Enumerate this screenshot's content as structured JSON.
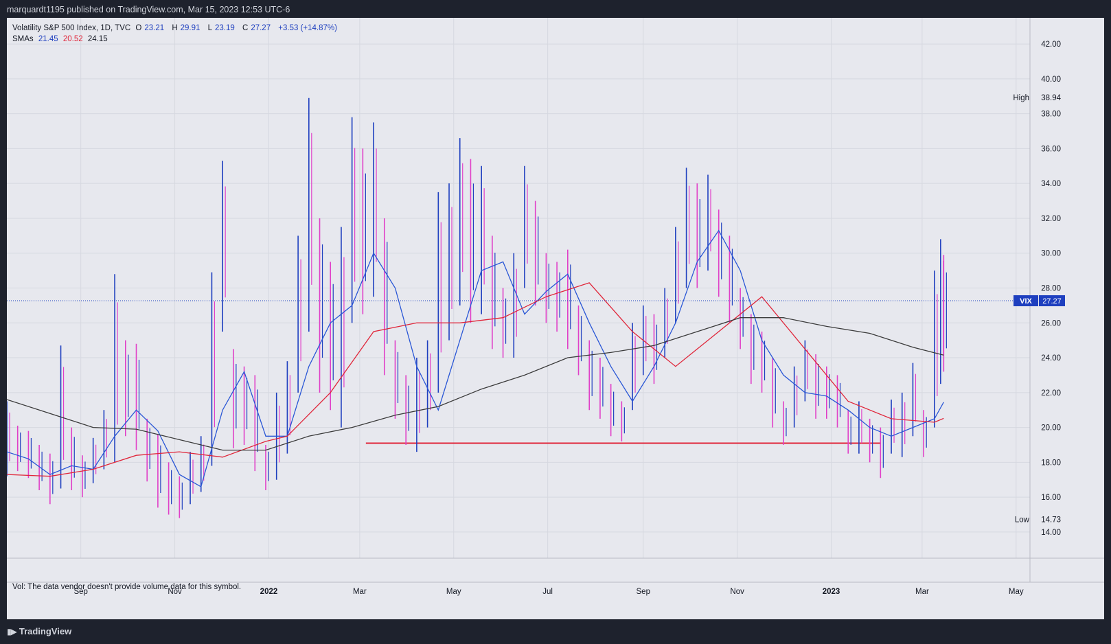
{
  "header": {
    "published": "marquardt1195 published on TradingView.com, Mar 15, 2023 12:53 UTC-6"
  },
  "legend": {
    "symbol_line": "Volatility S&P 500 Index, 1D, TVC",
    "o_label": "O",
    "o_value": "23.21",
    "h_label": "H",
    "h_value": "29.91",
    "l_label": "L",
    "l_value": "23.19",
    "c_label": "C",
    "c_value": "27.27",
    "change": "+3.53 (+14.87%)",
    "sma_label": "SMAs",
    "sma1": "21.45",
    "sma2": "20.52",
    "sma3": "24.15"
  },
  "volume_note": "Vol: The data vendor doesn't provide volume data for this symbol.",
  "footer": {
    "logo_text": "TradingView"
  },
  "colors": {
    "up": "#1e3fbf",
    "down": "#e040c8",
    "sma20": "#2a57d6",
    "sma50": "#e0263a",
    "sma200": "#3b3b3b",
    "support": "#e0263a",
    "price_line": "#1e3fbf",
    "panel": "#e7e8ee"
  },
  "chart_data": {
    "type": "bar",
    "title": "Volatility S&P 500 Index, 1D, TVC",
    "x_axis_labels": [
      "Sep",
      "Nov",
      "2022",
      "Mar",
      "May",
      "Jul",
      "Sep",
      "Nov",
      "2023",
      "Mar",
      "May"
    ],
    "x_axis_label_dates": [
      "2021-09-01",
      "2021-11-01",
      "2022-01-01",
      "2022-03-01",
      "2022-05-01",
      "2022-07-01",
      "2022-09-01",
      "2022-11-01",
      "2023-01-01",
      "2023-03-01",
      "2023-05-01"
    ],
    "bold_labels": [
      "2022",
      "2023"
    ],
    "y_ticks": [
      "14.00",
      "16.00",
      "18.00",
      "20.00",
      "22.00",
      "24.00",
      "26.00",
      "28.00",
      "30.00",
      "32.00",
      "34.00",
      "36.00",
      "38.00",
      "40.00",
      "42.00"
    ],
    "ylim": [
      12.5,
      43.5
    ],
    "x_range": [
      "2021-07-15",
      "2023-05-10"
    ],
    "high": {
      "label": "High",
      "value": "38.94"
    },
    "low": {
      "label": "Low",
      "value": "14.73"
    },
    "last": {
      "label": "VIX",
      "value": "27.27"
    },
    "support_line": {
      "value": 19.1,
      "from": "2022-03-05",
      "to": "2023-02-02"
    },
    "price_line": 27.27,
    "bars": [
      {
        "d": "2021-07-15",
        "h": 21.5,
        "l": 17.2
      },
      {
        "d": "2021-07-22",
        "h": 20.1,
        "l": 17.5
      },
      {
        "d": "2021-07-29",
        "h": 19.8,
        "l": 17.1
      },
      {
        "d": "2021-08-05",
        "h": 19.0,
        "l": 16.4
      },
      {
        "d": "2021-08-12",
        "h": 18.5,
        "l": 15.6
      },
      {
        "d": "2021-08-19",
        "h": 24.7,
        "l": 16.5
      },
      {
        "d": "2021-08-26",
        "h": 20.0,
        "l": 16.4
      },
      {
        "d": "2021-09-02",
        "h": 18.4,
        "l": 16.0
      },
      {
        "d": "2021-09-09",
        "h": 19.4,
        "l": 16.8
      },
      {
        "d": "2021-09-16",
        "h": 21.0,
        "l": 17.6
      },
      {
        "d": "2021-09-23",
        "h": 28.8,
        "l": 18.0
      },
      {
        "d": "2021-09-30",
        "h": 25.0,
        "l": 19.5
      },
      {
        "d": "2021-10-07",
        "h": 24.8,
        "l": 18.7
      },
      {
        "d": "2021-10-14",
        "h": 20.5,
        "l": 16.9
      },
      {
        "d": "2021-10-21",
        "h": 19.6,
        "l": 15.4
      },
      {
        "d": "2021-10-28",
        "h": 18.0,
        "l": 15.0
      },
      {
        "d": "2021-11-04",
        "h": 17.2,
        "l": 14.8
      },
      {
        "d": "2021-11-11",
        "h": 18.6,
        "l": 15.6
      },
      {
        "d": "2021-11-18",
        "h": 19.5,
        "l": 16.3
      },
      {
        "d": "2021-11-25",
        "h": 28.9,
        "l": 17.8
      },
      {
        "d": "2021-12-02",
        "h": 35.3,
        "l": 25.5
      },
      {
        "d": "2021-12-09",
        "h": 24.5,
        "l": 18.8
      },
      {
        "d": "2021-12-16",
        "h": 23.5,
        "l": 19.0
      },
      {
        "d": "2021-12-23",
        "h": 23.0,
        "l": 17.5
      },
      {
        "d": "2021-12-30",
        "h": 19.0,
        "l": 16.4
      },
      {
        "d": "2022-01-06",
        "h": 22.0,
        "l": 17.0
      },
      {
        "d": "2022-01-13",
        "h": 23.8,
        "l": 18.5
      },
      {
        "d": "2022-01-20",
        "h": 31.0,
        "l": 22.0
      },
      {
        "d": "2022-01-27",
        "h": 38.9,
        "l": 25.5
      },
      {
        "d": "2022-02-03",
        "h": 32.0,
        "l": 22.0
      },
      {
        "d": "2022-02-10",
        "h": 29.5,
        "l": 21.0
      },
      {
        "d": "2022-02-17",
        "h": 31.5,
        "l": 20.0
      },
      {
        "d": "2022-02-24",
        "h": 37.8,
        "l": 26.0
      },
      {
        "d": "2022-03-03",
        "h": 36.0,
        "l": 26.5
      },
      {
        "d": "2022-03-10",
        "h": 37.5,
        "l": 27.5
      },
      {
        "d": "2022-03-17",
        "h": 32.0,
        "l": 23.0
      },
      {
        "d": "2022-03-24",
        "h": 25.0,
        "l": 20.5
      },
      {
        "d": "2022-03-31",
        "h": 23.0,
        "l": 19.0
      },
      {
        "d": "2022-04-07",
        "h": 24.0,
        "l": 18.6
      },
      {
        "d": "2022-04-14",
        "h": 25.0,
        "l": 20.0
      },
      {
        "d": "2022-04-21",
        "h": 33.5,
        "l": 22.0
      },
      {
        "d": "2022-04-28",
        "h": 34.0,
        "l": 25.0
      },
      {
        "d": "2022-05-05",
        "h": 36.6,
        "l": 27.0
      },
      {
        "d": "2022-05-12",
        "h": 35.4,
        "l": 26.0
      },
      {
        "d": "2022-05-19",
        "h": 35.0,
        "l": 26.5
      },
      {
        "d": "2022-05-26",
        "h": 31.0,
        "l": 24.5
      },
      {
        "d": "2022-06-02",
        "h": 28.0,
        "l": 24.0
      },
      {
        "d": "2022-06-09",
        "h": 30.0,
        "l": 24.0
      },
      {
        "d": "2022-06-16",
        "h": 35.0,
        "l": 28.0
      },
      {
        "d": "2022-06-23",
        "h": 33.0,
        "l": 27.0
      },
      {
        "d": "2022-06-30",
        "h": 30.0,
        "l": 26.0
      },
      {
        "d": "2022-07-07",
        "h": 29.5,
        "l": 25.5
      },
      {
        "d": "2022-07-14",
        "h": 30.2,
        "l": 24.5
      },
      {
        "d": "2022-07-21",
        "h": 27.0,
        "l": 23.0
      },
      {
        "d": "2022-07-28",
        "h": 25.0,
        "l": 21.0
      },
      {
        "d": "2022-08-04",
        "h": 24.0,
        "l": 20.5
      },
      {
        "d": "2022-08-11",
        "h": 22.5,
        "l": 19.5
      },
      {
        "d": "2022-08-18",
        "h": 21.5,
        "l": 19.2
      },
      {
        "d": "2022-08-25",
        "h": 26.0,
        "l": 21.0
      },
      {
        "d": "2022-09-01",
        "h": 27.0,
        "l": 23.0
      },
      {
        "d": "2022-09-08",
        "h": 26.5,
        "l": 22.5
      },
      {
        "d": "2022-09-15",
        "h": 28.0,
        "l": 24.0
      },
      {
        "d": "2022-09-22",
        "h": 31.5,
        "l": 26.0
      },
      {
        "d": "2022-09-29",
        "h": 34.9,
        "l": 28.0
      },
      {
        "d": "2022-10-06",
        "h": 34.0,
        "l": 28.0
      },
      {
        "d": "2022-10-13",
        "h": 34.5,
        "l": 29.0
      },
      {
        "d": "2022-10-20",
        "h": 32.5,
        "l": 27.5
      },
      {
        "d": "2022-10-27",
        "h": 31.0,
        "l": 26.0
      },
      {
        "d": "2022-11-03",
        "h": 28.0,
        "l": 24.5
      },
      {
        "d": "2022-11-10",
        "h": 26.5,
        "l": 22.5
      },
      {
        "d": "2022-11-17",
        "h": 25.5,
        "l": 22.0
      },
      {
        "d": "2022-11-24",
        "h": 24.0,
        "l": 20.0
      },
      {
        "d": "2022-12-01",
        "h": 21.5,
        "l": 19.0
      },
      {
        "d": "2022-12-08",
        "h": 23.5,
        "l": 20.0
      },
      {
        "d": "2022-12-15",
        "h": 25.0,
        "l": 21.5
      },
      {
        "d": "2022-12-22",
        "h": 24.2,
        "l": 20.5
      },
      {
        "d": "2022-12-29",
        "h": 23.5,
        "l": 20.5
      },
      {
        "d": "2023-01-05",
        "h": 23.0,
        "l": 20.0
      },
      {
        "d": "2023-01-12",
        "h": 21.0,
        "l": 18.5
      },
      {
        "d": "2023-01-19",
        "h": 21.5,
        "l": 18.5
      },
      {
        "d": "2023-01-26",
        "h": 20.5,
        "l": 18.0
      },
      {
        "d": "2023-02-02",
        "h": 20.0,
        "l": 17.1
      },
      {
        "d": "2023-02-09",
        "h": 21.6,
        "l": 18.5
      },
      {
        "d": "2023-02-16",
        "h": 22.0,
        "l": 18.3
      },
      {
        "d": "2023-02-23",
        "h": 23.7,
        "l": 19.5
      },
      {
        "d": "2023-03-02",
        "h": 21.0,
        "l": 18.3
      },
      {
        "d": "2023-03-09",
        "h": 29.0,
        "l": 20.0
      },
      {
        "d": "2023-03-13",
        "h": 30.8,
        "l": 22.5
      },
      {
        "d": "2023-03-15",
        "h": 29.9,
        "l": 23.2
      }
    ],
    "series": [
      {
        "name": "SMA 20",
        "color": "#2a57d6",
        "points": [
          [
            "2021-07-15",
            18.6
          ],
          [
            "2021-07-29",
            18.2
          ],
          [
            "2021-08-12",
            17.3
          ],
          [
            "2021-08-26",
            17.8
          ],
          [
            "2021-09-09",
            17.6
          ],
          [
            "2021-09-23",
            19.5
          ],
          [
            "2021-10-07",
            21.0
          ],
          [
            "2021-10-21",
            19.8
          ],
          [
            "2021-11-04",
            17.3
          ],
          [
            "2021-11-18",
            16.6
          ],
          [
            "2021-12-02",
            21.0
          ],
          [
            "2021-12-16",
            23.2
          ],
          [
            "2021-12-30",
            19.5
          ],
          [
            "2022-01-13",
            19.5
          ],
          [
            "2022-01-27",
            23.5
          ],
          [
            "2022-02-10",
            26.0
          ],
          [
            "2022-02-24",
            27.0
          ],
          [
            "2022-03-10",
            30.0
          ],
          [
            "2022-03-24",
            28.0
          ],
          [
            "2022-04-07",
            23.5
          ],
          [
            "2022-04-21",
            21.0
          ],
          [
            "2022-05-05",
            25.0
          ],
          [
            "2022-05-19",
            29.0
          ],
          [
            "2022-06-02",
            29.5
          ],
          [
            "2022-06-16",
            26.5
          ],
          [
            "2022-06-30",
            27.8
          ],
          [
            "2022-07-14",
            28.8
          ],
          [
            "2022-07-28",
            26.0
          ],
          [
            "2022-08-11",
            23.5
          ],
          [
            "2022-08-25",
            21.5
          ],
          [
            "2022-09-08",
            23.5
          ],
          [
            "2022-09-22",
            26.0
          ],
          [
            "2022-10-06",
            29.5
          ],
          [
            "2022-10-20",
            31.3
          ],
          [
            "2022-11-03",
            29.0
          ],
          [
            "2022-11-17",
            25.0
          ],
          [
            "2022-12-01",
            23.0
          ],
          [
            "2022-12-15",
            22.0
          ],
          [
            "2022-12-29",
            21.8
          ],
          [
            "2023-01-12",
            21.0
          ],
          [
            "2023-01-26",
            20.0
          ],
          [
            "2023-02-09",
            19.5
          ],
          [
            "2023-02-23",
            20.0
          ],
          [
            "2023-03-09",
            20.5
          ],
          [
            "2023-03-15",
            21.45
          ]
        ]
      },
      {
        "name": "SMA 50",
        "color": "#e0263a",
        "points": [
          [
            "2021-07-15",
            17.3
          ],
          [
            "2021-08-12",
            17.2
          ],
          [
            "2021-09-09",
            17.6
          ],
          [
            "2021-10-07",
            18.4
          ],
          [
            "2021-11-04",
            18.6
          ],
          [
            "2021-12-02",
            18.3
          ],
          [
            "2021-12-30",
            19.2
          ],
          [
            "2022-01-13",
            19.5
          ],
          [
            "2022-02-10",
            22.0
          ],
          [
            "2022-03-10",
            25.5
          ],
          [
            "2022-04-07",
            26.0
          ],
          [
            "2022-05-05",
            26.0
          ],
          [
            "2022-06-02",
            26.3
          ],
          [
            "2022-06-30",
            27.5
          ],
          [
            "2022-07-28",
            28.3
          ],
          [
            "2022-08-25",
            25.5
          ],
          [
            "2022-09-22",
            23.5
          ],
          [
            "2022-10-20",
            25.5
          ],
          [
            "2022-11-17",
            27.5
          ],
          [
            "2022-12-15",
            24.5
          ],
          [
            "2023-01-12",
            21.5
          ],
          [
            "2023-02-09",
            20.5
          ],
          [
            "2023-03-09",
            20.3
          ],
          [
            "2023-03-15",
            20.52
          ]
        ]
      },
      {
        "name": "SMA 200",
        "color": "#3b3b3b",
        "points": [
          [
            "2021-07-15",
            21.6
          ],
          [
            "2021-08-12",
            20.8
          ],
          [
            "2021-09-09",
            20.0
          ],
          [
            "2021-10-07",
            19.9
          ],
          [
            "2021-11-04",
            19.3
          ],
          [
            "2021-12-02",
            18.7
          ],
          [
            "2021-12-30",
            18.7
          ],
          [
            "2022-01-27",
            19.5
          ],
          [
            "2022-02-24",
            20.0
          ],
          [
            "2022-03-24",
            20.7
          ],
          [
            "2022-04-21",
            21.2
          ],
          [
            "2022-05-19",
            22.2
          ],
          [
            "2022-06-16",
            23.0
          ],
          [
            "2022-07-14",
            24.0
          ],
          [
            "2022-08-11",
            24.3
          ],
          [
            "2022-09-08",
            24.7
          ],
          [
            "2022-10-06",
            25.5
          ],
          [
            "2022-11-03",
            26.3
          ],
          [
            "2022-12-01",
            26.3
          ],
          [
            "2022-12-29",
            25.8
          ],
          [
            "2023-01-26",
            25.4
          ],
          [
            "2023-02-23",
            24.6
          ],
          [
            "2023-03-15",
            24.15
          ]
        ]
      }
    ]
  }
}
